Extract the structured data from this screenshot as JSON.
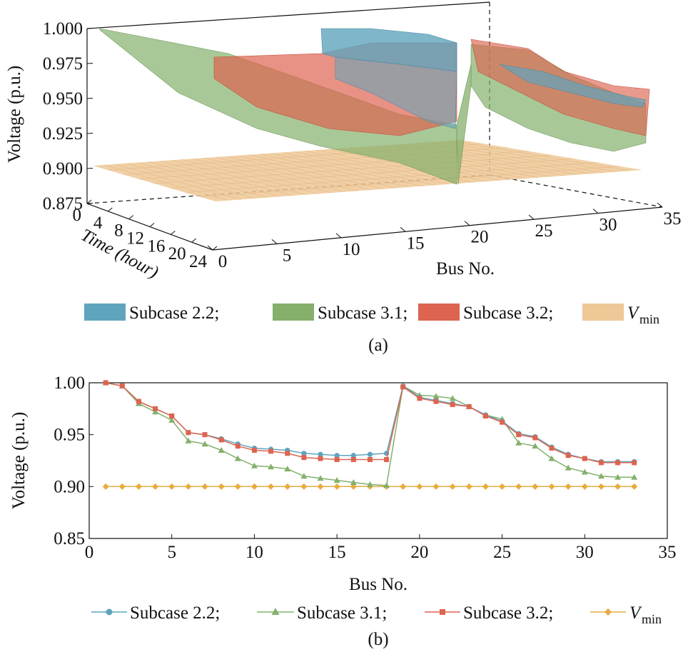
{
  "colors": {
    "subcase22": "#5fa4bd",
    "subcase31": "#84b06c",
    "subcase32": "#dd6450",
    "vmin": "#e6ac3e",
    "vmin_plane": "#efc897"
  },
  "chart_data": [
    {
      "type": "area",
      "variant": "3d-surface",
      "caption": "(a)",
      "xlabel": "Bus No.",
      "ylabel": "Time (hour)",
      "zlabel": "Voltage (p.u.)",
      "xlim": [
        0,
        35
      ],
      "ylim": [
        0,
        24
      ],
      "zlim": [
        0.875,
        1.0
      ],
      "x_ticks": [
        0,
        5,
        10,
        15,
        20,
        25,
        30,
        35
      ],
      "y_ticks": [
        0,
        4,
        8,
        12,
        16,
        20,
        24
      ],
      "z_ticks": [
        "0.875",
        "0.900",
        "0.925",
        "0.950",
        "0.975",
        "1.000"
      ],
      "legend_position": "bottom",
      "series": [
        {
          "name": "Subcase 2.2;",
          "icon": "swatch"
        },
        {
          "name": "Subcase 3.1;",
          "icon": "swatch"
        },
        {
          "name": "Subcase 3.2;",
          "icon": "swatch"
        },
        {
          "name": "V",
          "subscript": "min",
          "icon": "swatch"
        }
      ]
    },
    {
      "type": "line",
      "caption": "(b)",
      "xlabel": "Bus No.",
      "ylabel": "Voltage (p.u.)",
      "xlim": [
        0,
        35
      ],
      "ylim": [
        0.85,
        1.0
      ],
      "x_ticks": [
        0,
        5,
        10,
        15,
        20,
        25,
        30,
        35
      ],
      "y_ticks": [
        "0.85",
        "0.90",
        "0.95",
        "1.00"
      ],
      "grid": false,
      "legend_position": "bottom",
      "x": [
        1,
        2,
        3,
        4,
        5,
        6,
        7,
        8,
        9,
        10,
        11,
        12,
        13,
        14,
        15,
        16,
        17,
        18,
        19,
        20,
        21,
        22,
        23,
        24,
        25,
        26,
        27,
        28,
        29,
        30,
        31,
        32,
        33
      ],
      "series": [
        {
          "name": "Subcase 2.2;",
          "marker": "circle",
          "values": [
            1.0,
            0.997,
            0.982,
            0.975,
            0.968,
            0.952,
            0.95,
            0.946,
            0.941,
            0.937,
            0.936,
            0.935,
            0.932,
            0.931,
            0.93,
            0.93,
            0.931,
            0.932,
            0.997,
            0.986,
            0.983,
            0.98,
            0.977,
            0.969,
            0.963,
            0.951,
            0.948,
            0.938,
            0.931,
            0.927,
            0.924,
            0.924,
            0.924
          ]
        },
        {
          "name": "Subcase 3.1;",
          "marker": "triangle",
          "values": [
            1.0,
            0.997,
            0.98,
            0.972,
            0.964,
            0.944,
            0.941,
            0.935,
            0.927,
            0.92,
            0.919,
            0.917,
            0.91,
            0.908,
            0.906,
            0.904,
            0.902,
            0.901,
            0.997,
            0.988,
            0.987,
            0.985,
            0.977,
            0.969,
            0.965,
            0.942,
            0.939,
            0.927,
            0.918,
            0.914,
            0.91,
            0.909,
            0.909
          ]
        },
        {
          "name": "Subcase 3.2;",
          "marker": "square",
          "values": [
            1.0,
            0.997,
            0.982,
            0.975,
            0.968,
            0.952,
            0.95,
            0.945,
            0.939,
            0.935,
            0.934,
            0.932,
            0.928,
            0.927,
            0.926,
            0.926,
            0.926,
            0.926,
            0.996,
            0.985,
            0.982,
            0.979,
            0.977,
            0.968,
            0.962,
            0.95,
            0.947,
            0.937,
            0.93,
            0.927,
            0.923,
            0.923,
            0.923
          ]
        },
        {
          "name": "V",
          "subscript": "min",
          "marker": "diamond",
          "values": [
            0.9,
            0.9,
            0.9,
            0.9,
            0.9,
            0.9,
            0.9,
            0.9,
            0.9,
            0.9,
            0.9,
            0.9,
            0.9,
            0.9,
            0.9,
            0.9,
            0.9,
            0.9,
            0.9,
            0.9,
            0.9,
            0.9,
            0.9,
            0.9,
            0.9,
            0.9,
            0.9,
            0.9,
            0.9,
            0.9,
            0.9,
            0.9,
            0.9
          ]
        }
      ]
    }
  ]
}
